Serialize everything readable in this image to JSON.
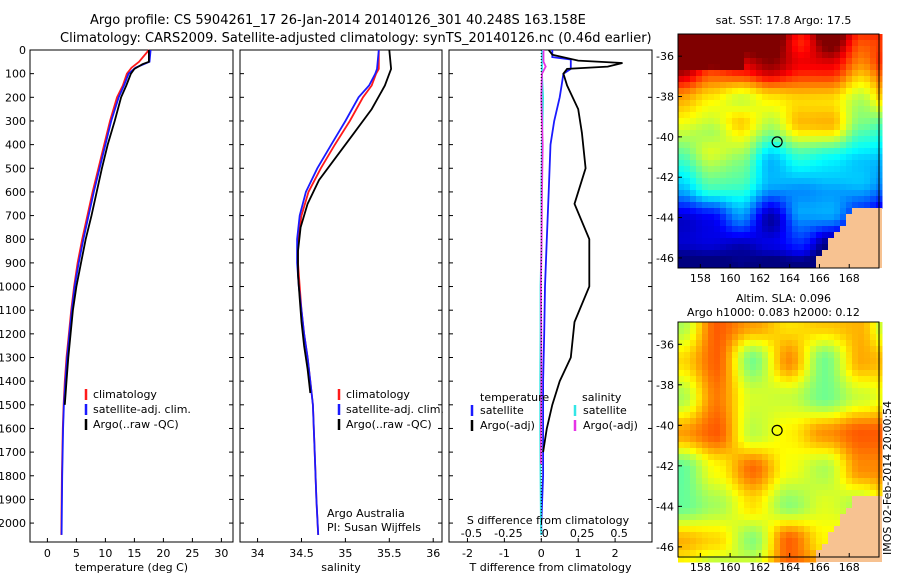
{
  "header": {
    "line1": "Argo profile: CS 5904261_17 26-Jan-2014 20140126_301 40.248S 163.158E",
    "line2": "Climatology: CARS2009. Satellite-adjusted climatology: synTS_20140126.nc (0.46d earlier)"
  },
  "colors": {
    "climatology": "#ff1a1a",
    "satellite": "#1a1aff",
    "argo": "#000000",
    "salinity_satellite": "#33e6e6",
    "salinity_argo": "#e633e6"
  },
  "chart_data": [
    {
      "type": "line",
      "xlabel": "temperature (deg C)",
      "ylabel": "",
      "xlim": [
        -3,
        32
      ],
      "ylim": [
        2080,
        0
      ],
      "xticks": [
        0,
        5,
        10,
        15,
        20,
        25,
        30
      ],
      "yticks": [
        0,
        100,
        200,
        300,
        400,
        500,
        600,
        700,
        800,
        900,
        1000,
        1100,
        1200,
        1300,
        1400,
        1500,
        1600,
        1700,
        1800,
        1900,
        2000
      ],
      "legend": [
        "climatology",
        "satellite-adj. clim.",
        "Argo(..raw -QC)"
      ],
      "legend_position": "lower-left",
      "series": [
        {
          "name": "climatology",
          "color": "#ff1a1a",
          "x": [
            17.5,
            15.8,
            14.5,
            13.7,
            13.0,
            12.0,
            10.8,
            9.8,
            8.8,
            7.8,
            6.9,
            6.0,
            5.2,
            4.6,
            4.1,
            3.7,
            3.3,
            3.0,
            2.8,
            2.65,
            2.5,
            2.4
          ],
          "y": [
            0,
            50,
            75,
            100,
            150,
            200,
            300,
            400,
            500,
            600,
            700,
            800,
            900,
            1000,
            1100,
            1200,
            1300,
            1400,
            1500,
            1600,
            1800,
            2050
          ]
        },
        {
          "name": "satellite-adj. clim.",
          "color": "#1a1aff",
          "x": [
            17.8,
            17.6,
            15.2,
            14.0,
            13.2,
            12.3,
            11.0,
            10.0,
            9.0,
            8.0,
            7.1,
            6.2,
            5.4,
            4.7,
            4.2,
            3.8,
            3.4,
            3.1,
            2.85,
            2.7,
            2.55,
            2.45
          ],
          "y": [
            0,
            50,
            75,
            100,
            150,
            200,
            300,
            400,
            500,
            600,
            700,
            800,
            900,
            1000,
            1100,
            1200,
            1300,
            1400,
            1500,
            1600,
            1800,
            2050
          ]
        },
        {
          "name": "Argo(..raw -QC)",
          "color": "#000000",
          "x": [
            17.5,
            17.5,
            16.4,
            15.0,
            14.4,
            13.6,
            12.7,
            11.6,
            10.4,
            9.4,
            8.5,
            7.6,
            6.6,
            5.8,
            5.0,
            4.4,
            4.0,
            3.6,
            3.3,
            3.0
          ],
          "y": [
            0,
            50,
            60,
            80,
            100,
            150,
            200,
            300,
            400,
            500,
            600,
            700,
            800,
            900,
            1000,
            1100,
            1200,
            1300,
            1400,
            1500
          ]
        }
      ]
    },
    {
      "type": "line",
      "xlabel": "salinity",
      "ylabel": "",
      "xlim": [
        33.8,
        36.1
      ],
      "ylim": [
        2080,
        0
      ],
      "xticks": [
        34,
        34.5,
        35,
        35.5,
        36
      ],
      "legend": [
        "climatology",
        "satellite-adj. clim.",
        "Argo(..raw -QC)"
      ],
      "legend_position": "lower-right",
      "annotations": [
        "Argo Australia",
        "PI: Susan Wijffels"
      ],
      "series": [
        {
          "name": "climatology",
          "color": "#ff1a1a",
          "x": [
            35.38,
            35.38,
            35.35,
            35.3,
            35.2,
            35.05,
            34.88,
            34.72,
            34.58,
            34.5,
            34.46,
            34.46,
            34.48,
            34.5,
            34.53,
            34.57,
            34.6,
            34.63,
            34.65,
            34.67,
            34.69
          ],
          "y": [
            0,
            80,
            100,
            150,
            200,
            300,
            400,
            500,
            600,
            700,
            800,
            900,
            1000,
            1100,
            1200,
            1300,
            1400,
            1500,
            1700,
            1900,
            2050
          ]
        },
        {
          "name": "satellite-adj. clim.",
          "color": "#1a1aff",
          "x": [
            35.38,
            35.36,
            35.34,
            35.27,
            35.15,
            35.0,
            34.84,
            34.68,
            34.55,
            34.48,
            34.45,
            34.45,
            34.47,
            34.5,
            34.53,
            34.57,
            34.6,
            34.63,
            34.65,
            34.67,
            34.69
          ],
          "y": [
            0,
            80,
            100,
            150,
            200,
            300,
            400,
            500,
            600,
            700,
            800,
            900,
            1000,
            1100,
            1200,
            1300,
            1400,
            1500,
            1700,
            1900,
            2050
          ]
        },
        {
          "name": "Argo(..raw -QC)",
          "color": "#000000",
          "x": [
            35.5,
            35.52,
            35.5,
            35.45,
            35.3,
            35.1,
            34.9,
            34.7,
            34.57,
            34.49,
            34.46,
            34.46,
            34.48,
            34.5,
            34.53,
            34.57,
            34.6
          ],
          "y": [
            0,
            80,
            100,
            150,
            250,
            350,
            450,
            550,
            650,
            750,
            850,
            950,
            1050,
            1150,
            1250,
            1350,
            1450
          ]
        }
      ]
    },
    {
      "type": "line",
      "xlabel": "T difference from climatology",
      "x2label": "S difference from climatology",
      "xlim": [
        -2.5,
        3.0
      ],
      "ylim": [
        2080,
        0
      ],
      "xticks": [
        -2,
        -1,
        0,
        1,
        2
      ],
      "x2ticks": [
        "-0.5",
        "-0.25",
        "0",
        "0.25",
        "0.5"
      ],
      "legend_groups": [
        {
          "title": "temperature",
          "entries": [
            "satellite",
            "Argo(-adj)"
          ]
        },
        {
          "title": "salinity",
          "entries": [
            "satellite",
            "Argo(-adj)"
          ]
        }
      ],
      "legend_position": "lower-center",
      "series": [
        {
          "name": "satellite (temperature)",
          "color": "#1a1aff",
          "x": [
            0.3,
            0.3,
            0.8,
            0.8,
            0.8,
            0.6,
            0.55,
            0.5,
            0.35,
            0.25,
            0.2,
            0.15,
            0.1,
            0.08,
            0.05,
            0.05,
            0.05,
            0.0,
            0.0
          ],
          "y": [
            0,
            30,
            40,
            60,
            80,
            100,
            150,
            200,
            300,
            400,
            600,
            800,
            1000,
            1200,
            1400,
            1600,
            1800,
            2000,
            2050
          ]
        },
        {
          "name": "Argo (temperature)",
          "color": "#000000",
          "x": [
            0.2,
            0.3,
            1.0,
            2.2,
            1.8,
            0.7,
            0.6,
            0.7,
            1.0,
            1.1,
            1.2,
            0.9,
            1.3,
            1.3,
            0.9,
            0.8,
            0.5,
            0.3,
            0.15,
            0.05
          ],
          "y": [
            0,
            20,
            45,
            55,
            70,
            80,
            100,
            150,
            250,
            350,
            500,
            650,
            800,
            1000,
            1150,
            1300,
            1400,
            1500,
            1600,
            1700
          ]
        },
        {
          "name": "satellite (salinity)",
          "color": "#33e6e6",
          "x": [
            0.02,
            0.02,
            0.05,
            0.02,
            0.0,
            0.01,
            -0.02,
            -0.02,
            -0.03,
            -0.03,
            -0.02,
            -0.01,
            0.0
          ],
          "y": [
            0,
            100,
            200,
            400,
            600,
            800,
            1000,
            1200,
            1400,
            1600,
            1800,
            2000,
            2050
          ]
        },
        {
          "name": "Argo (salinity)",
          "color": "#e633e6",
          "x": [
            0.06,
            0.06,
            0.12,
            0.02,
            0.0,
            0.04,
            0.02,
            0.01,
            -0.01,
            0.0,
            0.0,
            -0.01,
            -0.01
          ],
          "y": [
            0,
            50,
            70,
            100,
            200,
            400,
            600,
            800,
            1000,
            1200,
            1400,
            1600,
            1750
          ]
        }
      ]
    },
    {
      "type": "heatmap",
      "title": "sat. SST: 17.8 Argo: 17.5",
      "xticks": [
        158,
        160,
        162,
        164,
        166,
        168
      ],
      "yticks": [
        -36,
        -38,
        -40,
        -42,
        -44,
        -46
      ],
      "xlim": [
        156.5,
        170.0
      ],
      "ylim": [
        -46.5,
        -34.9
      ],
      "marker": {
        "lon": 163.158,
        "lat": -40.248
      }
    },
    {
      "type": "heatmap",
      "title": "Altim. SLA: 0.096",
      "subtitle": "Argo h1000: 0.083 h2000: 0.12",
      "xticks": [
        158,
        160,
        162,
        164,
        166,
        168
      ],
      "yticks": [
        -36,
        -38,
        -40,
        -42,
        -44,
        -46
      ],
      "xlim": [
        156.5,
        170.0
      ],
      "ylim": [
        -46.5,
        -34.9
      ],
      "marker": {
        "lon": 163.158,
        "lat": -40.248
      }
    }
  ],
  "footer": {
    "side_text": "IMOS 02-Feb-2014 20:00:54"
  }
}
